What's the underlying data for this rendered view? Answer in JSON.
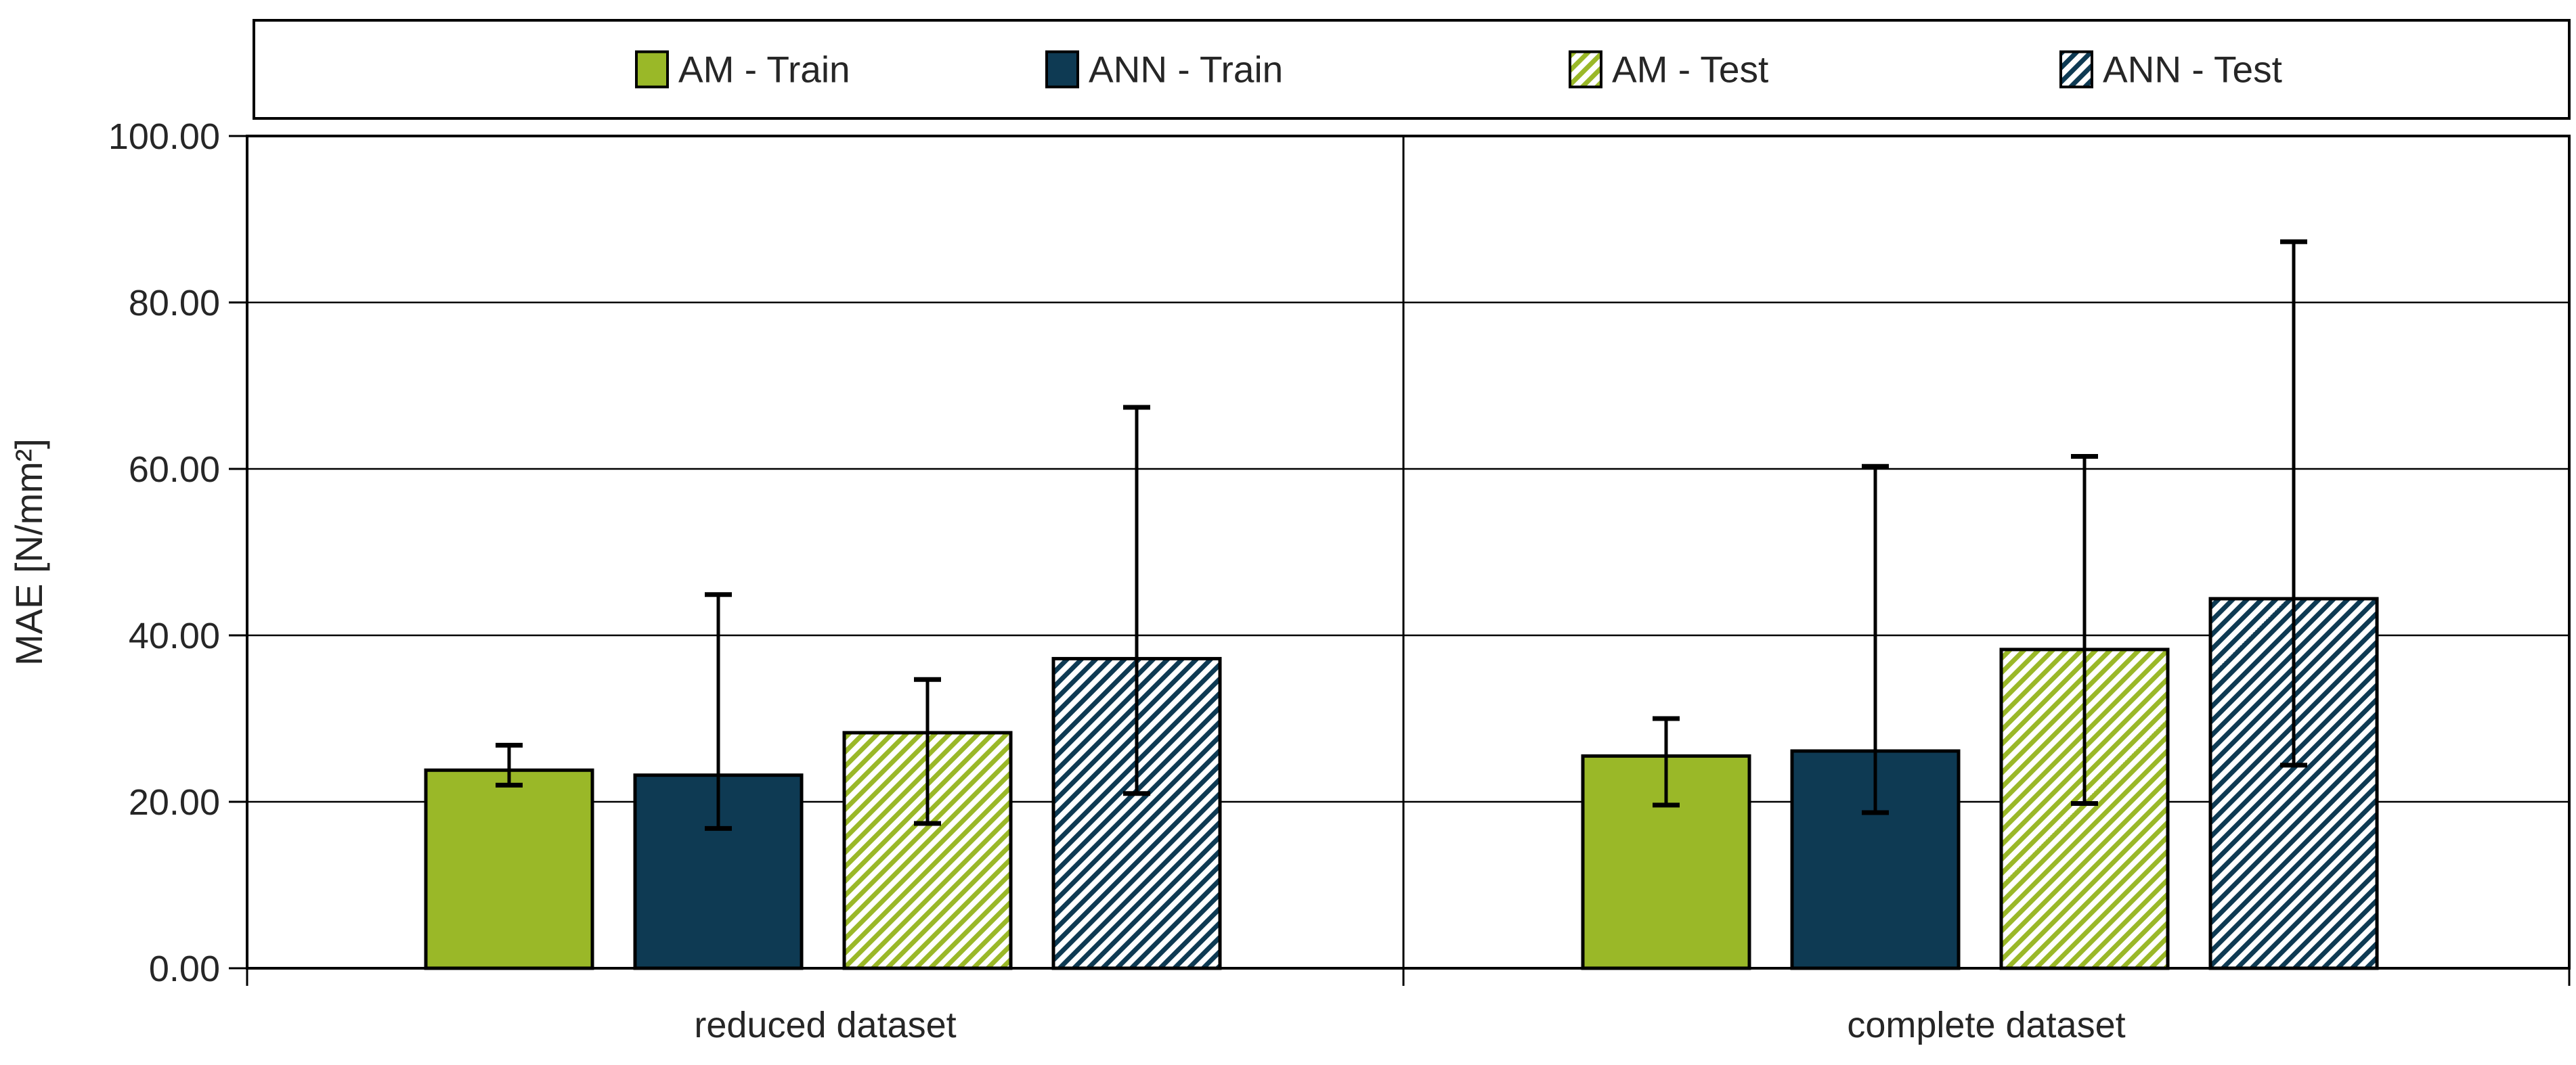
{
  "chart_data": {
    "type": "bar",
    "title": "",
    "ylabel": "MAE  [N/mm²]",
    "xlabel": "",
    "categories": [
      "reduced dataset",
      "complete dataset"
    ],
    "y_axis": {
      "min": 0,
      "max": 100,
      "step": 20,
      "tick_labels": [
        "0.00",
        "20.00",
        "40.00",
        "60.00",
        "80.00",
        "100.00"
      ]
    },
    "grid": true,
    "legend_position": "top",
    "error_bars": true,
    "series": [
      {
        "name": "AM - Train",
        "pattern": "solid",
        "color": "#9ab828",
        "values": [
          23.8,
          25.5
        ],
        "err_low": [
          22.0,
          19.6
        ],
        "err_high": [
          26.8,
          30.0
        ]
      },
      {
        "name": "ANN - Train",
        "pattern": "solid",
        "color": "#0e3a53",
        "values": [
          23.2,
          26.1
        ],
        "err_low": [
          16.8,
          18.7
        ],
        "err_high": [
          44.9,
          60.3
        ]
      },
      {
        "name": "AM - Test",
        "pattern": "hatch",
        "color": "#9ab828",
        "values": [
          28.3,
          38.3
        ],
        "err_low": [
          17.4,
          19.8
        ],
        "err_high": [
          34.7,
          61.5
        ]
      },
      {
        "name": "ANN - Test",
        "pattern": "hatch",
        "color": "#0e3a53",
        "values": [
          37.2,
          44.4
        ],
        "err_low": [
          21.0,
          24.4
        ],
        "err_high": [
          67.4,
          87.3
        ]
      }
    ],
    "series_err_note": "err_high order per category",
    "colors": {
      "green": "#9ab828",
      "navy": "#0e3a53",
      "axis": "#000000",
      "text": "#262626",
      "background": "#ffffff"
    }
  }
}
